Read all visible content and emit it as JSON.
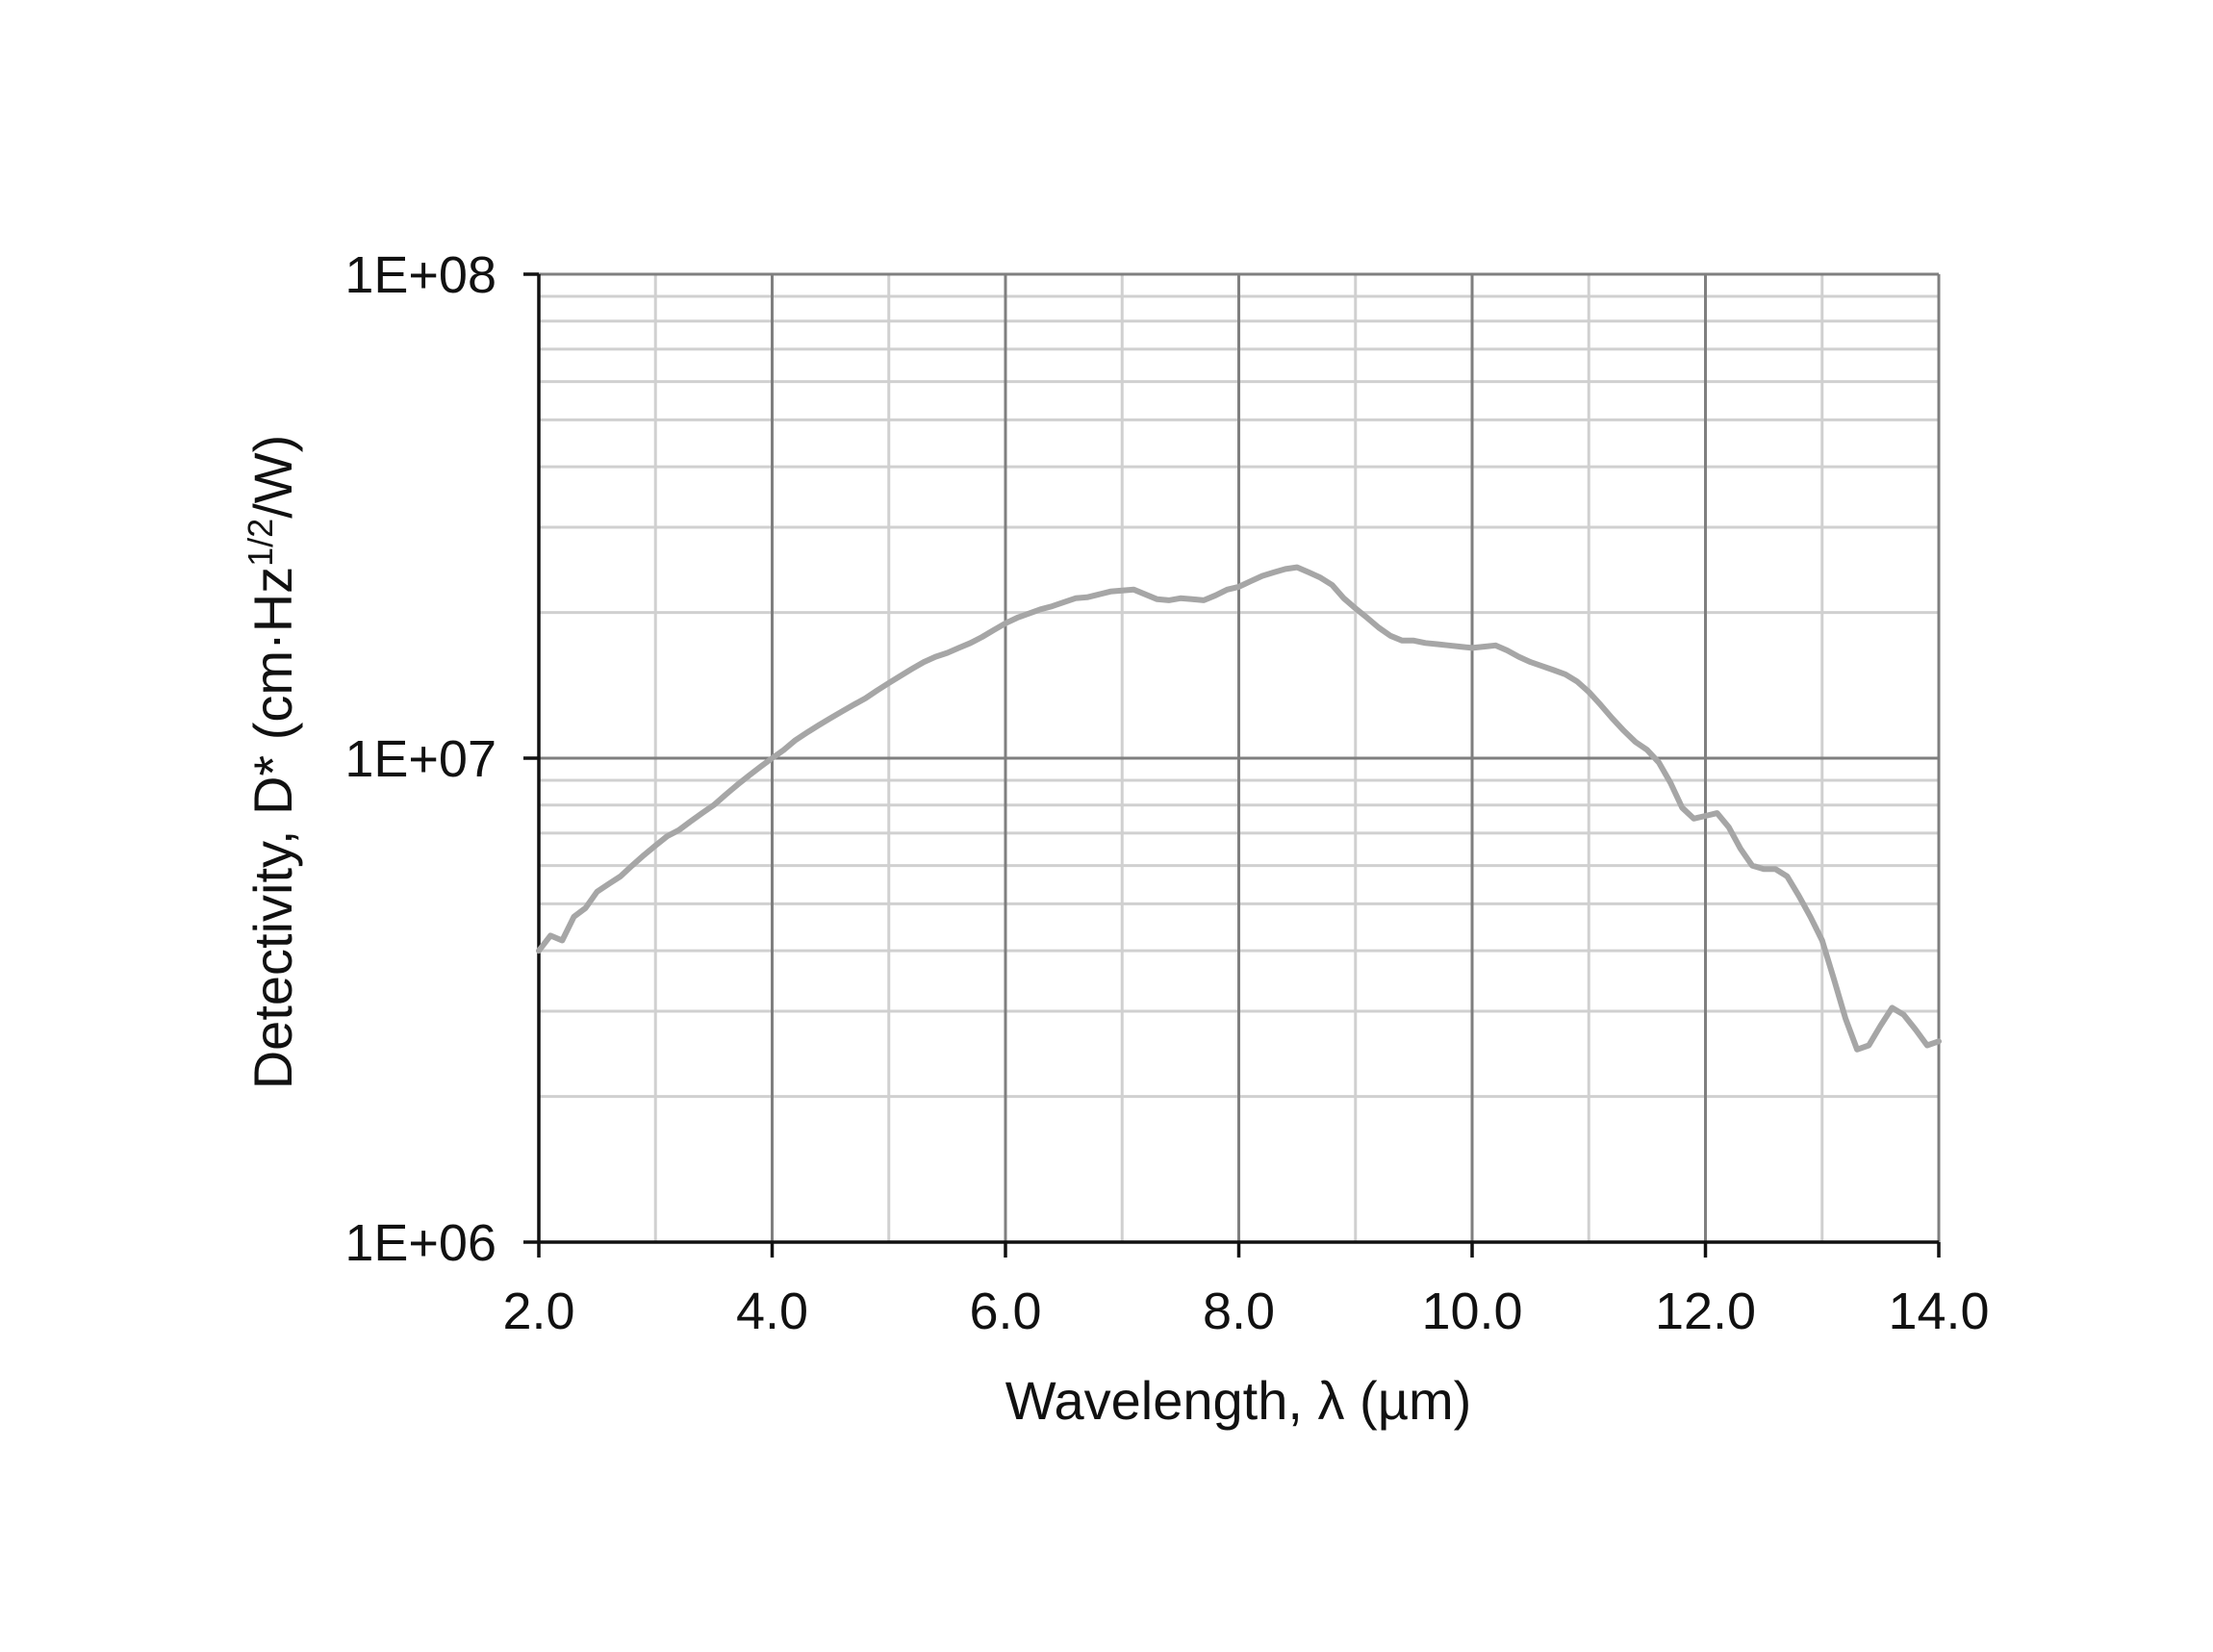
{
  "chart_data": {
    "type": "line",
    "xlabel": "Wavelength, λ (µm)",
    "ylabel": {
      "main": "Detectivity, D* (cm·Hz",
      "sup": "1/2",
      "tail": "/W)"
    },
    "xlim": [
      2.0,
      14.0
    ],
    "ylim": [
      1000000,
      100000000
    ],
    "yscale": "log",
    "grid": true,
    "legend": "none",
    "x_ticks": [
      "2.0",
      "4.0",
      "6.0",
      "8.0",
      "10.0",
      "12.0",
      "14.0"
    ],
    "y_ticks": [
      "1E+06",
      "1E+07",
      "1E+08"
    ],
    "colors": {
      "series": "#a6a6a6",
      "major_grid": "#7f7f7f",
      "minor_grid": "#d0d0d0",
      "axis": "#111111"
    },
    "series": [
      {
        "x": [
          2.0,
          2.1,
          2.2,
          2.3,
          2.4,
          2.5,
          2.6,
          2.7,
          2.8,
          2.9,
          3.0,
          3.1,
          3.2,
          3.3,
          3.4,
          3.5,
          3.6,
          3.7,
          3.8,
          3.9,
          4.0,
          4.1,
          4.2,
          4.3,
          4.4,
          4.5,
          4.6,
          4.7,
          4.8,
          4.9,
          5.0,
          5.1,
          5.2,
          5.3,
          5.4,
          5.5,
          5.6,
          5.7,
          5.8,
          5.9,
          6.0,
          6.1,
          6.2,
          6.3,
          6.4,
          6.5,
          6.6,
          6.7,
          6.8,
          6.9,
          7.0,
          7.1,
          7.2,
          7.3,
          7.4,
          7.5,
          7.6,
          7.7,
          7.8,
          7.9,
          8.0,
          8.1,
          8.2,
          8.3,
          8.4,
          8.5,
          8.6,
          8.7,
          8.8,
          8.9,
          9.0,
          9.1,
          9.2,
          9.3,
          9.4,
          9.5,
          9.6,
          9.7,
          9.8,
          9.9,
          10.0,
          10.1,
          10.2,
          10.3,
          10.4,
          10.5,
          10.6,
          10.7,
          10.8,
          10.9,
          11.0,
          11.1,
          11.2,
          11.3,
          11.4,
          11.5,
          11.6,
          11.7,
          11.8,
          11.9,
          12.0,
          12.1,
          12.2,
          12.3,
          12.4,
          12.5,
          12.6,
          12.7,
          12.8,
          12.9,
          13.0,
          13.1,
          13.2,
          13.3,
          13.4,
          13.5,
          13.6,
          13.7,
          13.8,
          13.9,
          14.0
        ],
        "y": [
          4000000,
          4300000,
          4200000,
          4700000,
          4900000,
          5300000,
          5500000,
          5700000,
          6000000,
          6300000,
          6600000,
          6900000,
          7100000,
          7400000,
          7700000,
          8000000,
          8400000,
          8800000,
          9200000,
          9600000,
          10000000,
          10400000,
          10900000,
          11300000,
          11700000,
          12100000,
          12500000,
          12900000,
          13300000,
          13800000,
          14300000,
          14800000,
          15300000,
          15800000,
          16200000,
          16500000,
          16900000,
          17300000,
          17800000,
          18400000,
          19000000,
          19500000,
          19900000,
          20300000,
          20600000,
          21000000,
          21400000,
          21500000,
          21800000,
          22100000,
          22200000,
          22300000,
          21800000,
          21300000,
          21200000,
          21400000,
          21300000,
          21200000,
          21700000,
          22300000,
          22600000,
          23200000,
          23800000,
          24200000,
          24600000,
          24800000,
          24200000,
          23600000,
          22800000,
          21400000,
          20400000,
          19500000,
          18600000,
          17900000,
          17500000,
          17500000,
          17300000,
          17200000,
          17100000,
          17000000,
          16900000,
          17000000,
          17100000,
          16700000,
          16200000,
          15800000,
          15500000,
          15200000,
          14900000,
          14400000,
          13700000,
          12900000,
          12100000,
          11400000,
          10800000,
          10400000,
          9800000,
          8900000,
          7900000,
          7500000,
          7600000,
          7700000,
          7200000,
          6500000,
          6000000,
          5900000,
          5900000,
          5700000,
          5200000,
          4700000,
          4200000,
          3500000,
          2900000,
          2500000,
          2550000,
          2800000,
          3050000,
          2950000,
          2750000,
          2550000,
          2600000
        ]
      }
    ]
  }
}
